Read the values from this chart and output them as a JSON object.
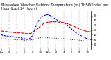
{
  "title": "Milwaukee Weather Outdoor Temperature (vs) THSW Index per Hour (Last 24 Hours)",
  "title_fontsize": 3.5,
  "background_color": "#ffffff",
  "grid_color": "#888888",
  "ylim": [
    10,
    90
  ],
  "yticks": [
    20,
    30,
    40,
    50,
    60,
    70,
    80
  ],
  "ylabel_fontsize": 3.0,
  "xlabel_fontsize": 2.8,
  "hours": [
    0,
    1,
    2,
    3,
    4,
    5,
    6,
    7,
    8,
    9,
    10,
    11,
    12,
    13,
    14,
    15,
    16,
    17,
    18,
    19,
    20,
    21,
    22,
    23
  ],
  "temp": [
    48,
    47,
    46,
    45,
    44,
    44,
    43,
    42,
    44,
    50,
    58,
    64,
    66,
    67,
    67,
    66,
    65,
    63,
    60,
    56,
    52,
    49,
    47,
    46
  ],
  "thsw": [
    40,
    38,
    37,
    36,
    35,
    34,
    32,
    30,
    38,
    60,
    75,
    80,
    82,
    78,
    72,
    68,
    65,
    60,
    52,
    45,
    40,
    36,
    32,
    30
  ],
  "dew": [
    32,
    32,
    31,
    31,
    30,
    30,
    29,
    29,
    30,
    32,
    34,
    34,
    34,
    33,
    33,
    32,
    32,
    31,
    30,
    30,
    29,
    28,
    27,
    27
  ],
  "temp_color": "#cc0000",
  "thsw_color": "#0000cc",
  "dew_color": "#111111",
  "temp_lw": 0.8,
  "thsw_lw": 0.8,
  "dew_lw": 0.7,
  "vgrid_x": [
    0,
    2,
    4,
    6,
    8,
    10,
    12,
    14,
    16,
    18,
    20,
    22
  ],
  "xtick_positions": [
    0,
    2,
    4,
    6,
    8,
    10,
    12,
    14,
    16,
    18,
    20,
    22
  ],
  "xtick_labels": [
    "12a",
    "2",
    "4",
    "6",
    "8",
    "10",
    "12p",
    "2",
    "4",
    "6",
    "8",
    "10"
  ]
}
